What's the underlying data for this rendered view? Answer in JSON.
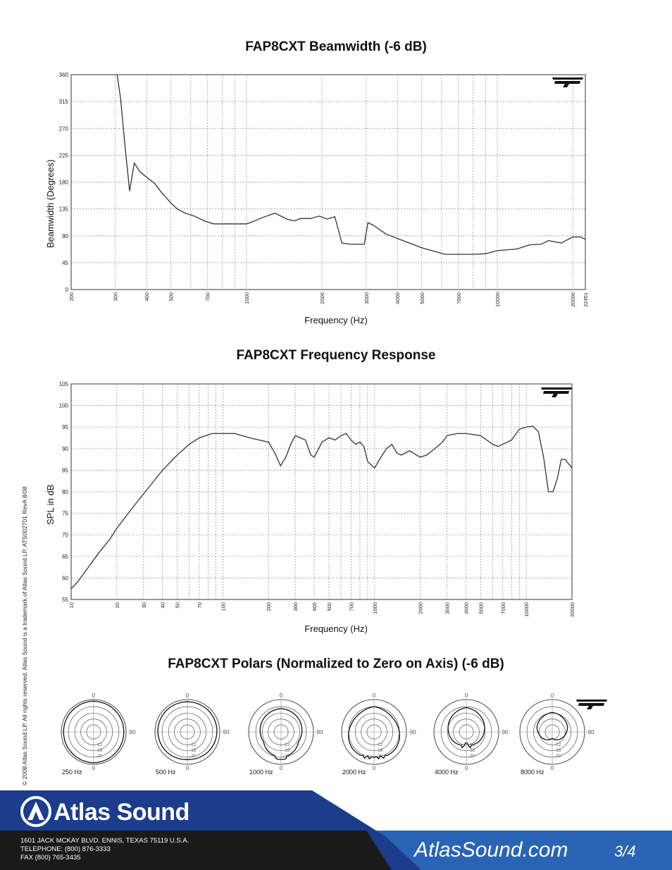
{
  "beamwidth": {
    "title": "FAP8CXT Beamwidth (-6 dB)",
    "xlabel": "Frequency (Hz)",
    "ylabel": "Beamwidth (Degrees)",
    "y_ticks": [
      "0",
      "45",
      "90",
      "135",
      "180",
      "225",
      "270",
      "315",
      "360"
    ],
    "x_ticks": [
      {
        "f": 200,
        "label": "200"
      },
      {
        "f": 300,
        "label": "300"
      },
      {
        "f": 400,
        "label": "400"
      },
      {
        "f": 500,
        "label": "500"
      },
      {
        "f": 700,
        "label": "700"
      },
      {
        "f": 1000,
        "label": "1000"
      },
      {
        "f": 2000,
        "label": "2000"
      },
      {
        "f": 3000,
        "label": "3000"
      },
      {
        "f": 4000,
        "label": "4000"
      },
      {
        "f": 5000,
        "label": "5000"
      },
      {
        "f": 7000,
        "label": "7000"
      },
      {
        "f": 10000,
        "label": "10000"
      },
      {
        "f": 20000,
        "label": "20000"
      },
      {
        "f": 22451,
        "label": "22451"
      }
    ]
  },
  "response": {
    "title": "FAP8CXT Frequency Response",
    "xlabel": "Frequency (Hz)",
    "ylabel": "SPL in dB",
    "y_ticks": [
      "55",
      "60",
      "65",
      "70",
      "75",
      "80",
      "85",
      "90",
      "95",
      "100",
      "105"
    ],
    "x_ticks": [
      {
        "f": 10,
        "label": "10"
      },
      {
        "f": 20,
        "label": "20"
      },
      {
        "f": 30,
        "label": "30"
      },
      {
        "f": 40,
        "label": "40"
      },
      {
        "f": 50,
        "label": "50"
      },
      {
        "f": 70,
        "label": "70"
      },
      {
        "f": 100,
        "label": "100"
      },
      {
        "f": 200,
        "label": "200"
      },
      {
        "f": 300,
        "label": "300"
      },
      {
        "f": 400,
        "label": "400"
      },
      {
        "f": 500,
        "label": "500"
      },
      {
        "f": 700,
        "label": "700"
      },
      {
        "f": 1000,
        "label": "1000"
      },
      {
        "f": 2000,
        "label": "2000"
      },
      {
        "f": 3000,
        "label": "3000"
      },
      {
        "f": 4000,
        "label": "4000"
      },
      {
        "f": 5000,
        "label": "5000"
      },
      {
        "f": 7000,
        "label": "7000"
      },
      {
        "f": 10000,
        "label": "10000"
      },
      {
        "f": 20000,
        "label": "20000"
      }
    ]
  },
  "polars": {
    "title": "FAP8CXT Polars (Normalized to Zero on Axis) (-6 dB)",
    "labels": [
      "250 Hz",
      "500 Hz",
      "1000 Hz",
      "2000 Hz",
      "4000 Hz",
      "8000 Hz"
    ],
    "angle_top": "0",
    "angle_side": "-90",
    "angle_bottom": "0",
    "ring_labels": [
      "-12",
      "-18",
      "-30"
    ]
  },
  "chart_data": [
    {
      "type": "line",
      "title": "FAP8CXT Beamwidth (-6 dB)",
      "xlabel": "Frequency (Hz)",
      "ylabel": "Beamwidth (Degrees)",
      "xscale": "log",
      "xlim": [
        200,
        22451
      ],
      "ylim": [
        0,
        360
      ],
      "grid": true,
      "series": [
        {
          "x": [
            305,
            315,
            328,
            342,
            357,
            375,
            400,
            430,
            460,
            500,
            530,
            570,
            620,
            680,
            740,
            800,
            900,
            1000,
            1050,
            1150,
            1300,
            1450,
            1550,
            1650,
            1800,
            1950,
            2100,
            2250,
            2400,
            2600,
            2950,
            3050,
            3200,
            3600,
            4200,
            5000,
            5600,
            6200,
            7000,
            8000,
            9000,
            10000,
            12000,
            13500,
            15000,
            16000,
            18000,
            20000,
            21500,
            22451
          ],
          "y": [
            360,
            320,
            240,
            165,
            212,
            198,
            188,
            178,
            162,
            145,
            135,
            128,
            123,
            115,
            110,
            110,
            110,
            110,
            113,
            120,
            128,
            118,
            115,
            119,
            119,
            123,
            118,
            122,
            78,
            76,
            76,
            112,
            108,
            93,
            82,
            70,
            64,
            59,
            59,
            59,
            60,
            65,
            68,
            75,
            76,
            82,
            78,
            88,
            88,
            84
          ]
        }
      ]
    },
    {
      "type": "line",
      "title": "FAP8CXT Frequency Response",
      "xlabel": "Frequency (Hz)",
      "ylabel": "SPL in dB",
      "xscale": "log",
      "xlim": [
        10,
        20000
      ],
      "ylim": [
        55,
        105
      ],
      "grid": true,
      "series": [
        {
          "x": [
            10,
            11,
            13,
            15,
            18,
            20,
            25,
            30,
            40,
            50,
            60,
            70,
            85,
            100,
            120,
            150,
            200,
            220,
            240,
            260,
            280,
            300,
            350,
            380,
            400,
            450,
            500,
            550,
            600,
            650,
            700,
            750,
            800,
            850,
            900,
            1000,
            1100,
            1200,
            1300,
            1400,
            1500,
            1700,
            2000,
            2200,
            2500,
            2800,
            3000,
            3500,
            4000,
            5000,
            6000,
            6500,
            7000,
            8000,
            9000,
            10000,
            11000,
            12000,
            13000,
            14000,
            15000,
            16000,
            17000,
            18000,
            20000
          ],
          "y": [
            57.5,
            59,
            62.5,
            65.5,
            69,
            71.5,
            76,
            79.5,
            85,
            88.5,
            91,
            92.5,
            93.5,
            93.5,
            93.5,
            92.5,
            91.5,
            89,
            86,
            88,
            91,
            93,
            92,
            88.5,
            88,
            91.5,
            92.5,
            92,
            93,
            93.5,
            92,
            91,
            91.5,
            90.5,
            87,
            85.5,
            88,
            90,
            91,
            89,
            88.5,
            89.5,
            88,
            88.5,
            90,
            91.5,
            93,
            93.5,
            93.5,
            93,
            91,
            90.5,
            91,
            92,
            94.5,
            95,
            95.2,
            94,
            88,
            80,
            80,
            83,
            87.5,
            87.5,
            85.5
          ]
        }
      ]
    }
  ],
  "side_note": "© 2008 Atlas Sound LP. All rights reserved. Atlas Sound is a trademark of Atlas Sound LP.     ATS002701 RevA 8/08",
  "footer": {
    "brand": "Atlas Sound",
    "address": [
      "1601 JACK MCKAY BLVD. ENNIS, TEXAS 75119  U.S.A.",
      "TELEPHONE: (800) 876-3333",
      "FAX (800) 765-3435"
    ],
    "website": "AtlasSound.com",
    "page": "3/4"
  },
  "colors": {
    "navy": "#1c3c8c",
    "blue": "#2a64b4",
    "dark": "#1a1a1a",
    "grid": "#8a8a8a"
  }
}
